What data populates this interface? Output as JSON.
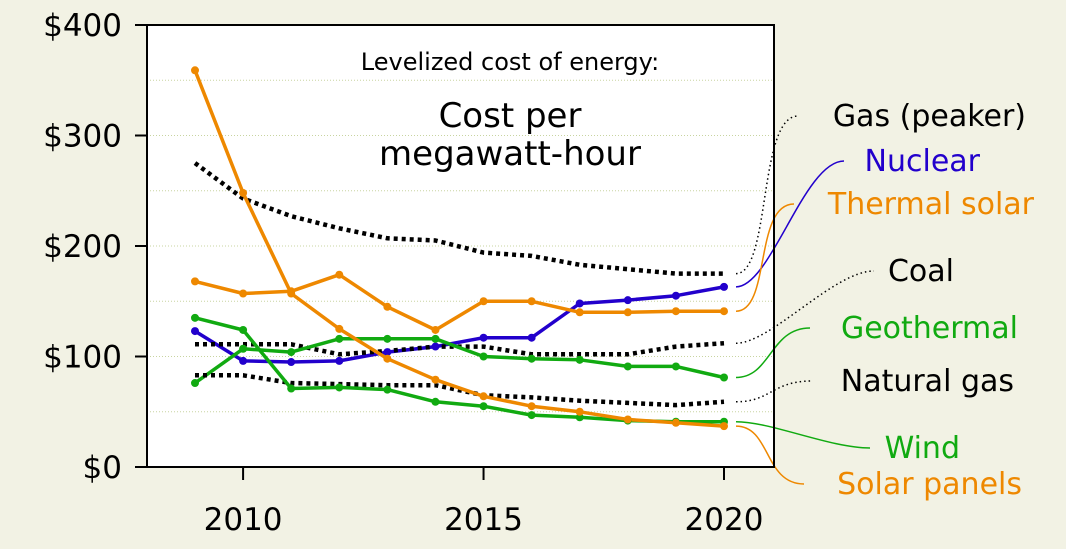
{
  "chart_data": {
    "type": "line",
    "title": "Levelized cost of energy:",
    "subtitle_line1": "Cost per",
    "subtitle_line2": "megawatt-hour",
    "xlabel": "",
    "ylabel": "",
    "x": [
      2009,
      2010,
      2011,
      2012,
      2013,
      2014,
      2015,
      2016,
      2017,
      2018,
      2019,
      2020
    ],
    "xlim": [
      2008,
      2021
    ],
    "ylim": [
      0,
      400
    ],
    "x_ticks": [
      2010,
      2015,
      2020
    ],
    "x_tick_labels": [
      "2010",
      "2015",
      "2020"
    ],
    "y_ticks": [
      0,
      100,
      200,
      300,
      400
    ],
    "y_tick_labels": [
      "$0",
      "$100",
      "$200",
      "$300",
      "$400"
    ],
    "horizontal_grid": [
      50,
      100,
      150,
      200,
      250,
      300,
      350
    ],
    "legend": "direct labels at right",
    "series": [
      {
        "name": "Gas (peaker)",
        "color": "#000000",
        "style": "dotted",
        "markers": false,
        "values": [
          275,
          243,
          227,
          216,
          207,
          205,
          194,
          191,
          183,
          179,
          175,
          175
        ]
      },
      {
        "name": "Nuclear",
        "color": "#2200cc",
        "style": "solid",
        "markers": true,
        "values": [
          123,
          96,
          95,
          96,
          104,
          109,
          117,
          117,
          148,
          151,
          155,
          163
        ]
      },
      {
        "name": "Thermal solar",
        "color": "#ee8800",
        "style": "solid",
        "markers": true,
        "values": [
          168,
          157,
          159,
          174,
          145,
          124,
          150,
          150,
          140,
          140,
          141,
          141
        ]
      },
      {
        "name": "Coal",
        "color": "#000000",
        "style": "dotted",
        "markers": false,
        "values": [
          111,
          111,
          111,
          102,
          105,
          109,
          109,
          102,
          102,
          102,
          109,
          112
        ]
      },
      {
        "name": "Geothermal",
        "color": "#11aa11",
        "style": "solid",
        "markers": true,
        "values": [
          76,
          107,
          104,
          116,
          116,
          116,
          100,
          98,
          97,
          91,
          91,
          81
        ]
      },
      {
        "name": "Natural gas",
        "color": "#000000",
        "style": "dotted",
        "markers": false,
        "values": [
          83,
          83,
          76,
          75,
          74,
          74,
          65,
          63,
          60,
          58,
          56,
          59
        ]
      },
      {
        "name": "Wind",
        "color": "#11aa11",
        "style": "solid",
        "markers": true,
        "values": [
          135,
          124,
          71,
          72,
          70,
          59,
          55,
          47,
          45,
          42,
          41,
          41
        ]
      },
      {
        "name": "Solar panels",
        "color": "#ee8800",
        "style": "solid",
        "markers": true,
        "values": [
          359,
          248,
          157,
          125,
          98,
          79,
          64,
          55,
          50,
          43,
          40,
          37
        ]
      }
    ]
  }
}
